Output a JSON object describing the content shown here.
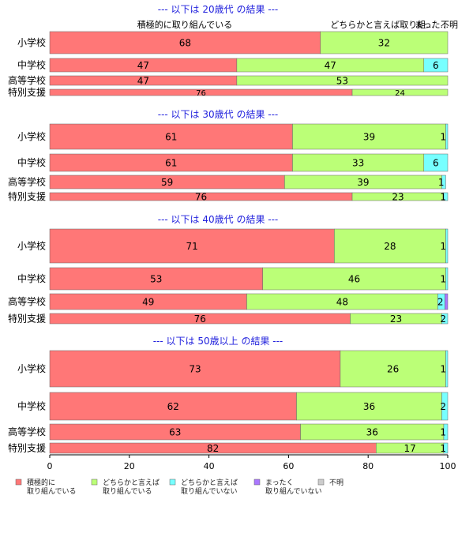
{
  "chart_data": {
    "type": "bar",
    "orientation": "horizontal",
    "stacked": true,
    "xlim": [
      0,
      100
    ],
    "x_ticks": [
      "0",
      "20",
      "40",
      "60",
      "80",
      "100"
    ],
    "category_labels_top": [
      "積極的に取り組んでいる",
      "どちらかと言えば取り組...",
      "まった...",
      "不明"
    ],
    "series_names": [
      "積極的に\n取り組んでいる",
      "どちらかと言えば\n取り組んでいる",
      "どちらかと言えば\n取り組んでいない",
      "まったく\n取り組んでいない",
      "不明"
    ],
    "series_colors": [
      "#ff7777",
      "#bbff77",
      "#77ffff",
      "#aa77ff",
      "#cccccc"
    ],
    "groups": [
      {
        "title": "--- 以下は 20歳代 の結果 ---",
        "rows": [
          {
            "label": "小学校",
            "values": [
              68,
              32,
              0,
              0,
              0
            ],
            "labels": [
              "68",
              "32",
              "",
              "",
              ""
            ]
          },
          {
            "label": "中学校",
            "values": [
              47,
              47,
              6,
              0,
              0
            ],
            "labels": [
              "47",
              "47",
              "6",
              "",
              ""
            ]
          },
          {
            "label": "高等学校",
            "values": [
              47,
              53,
              0,
              0,
              0
            ],
            "labels": [
              "47",
              "53",
              "",
              "",
              ""
            ]
          },
          {
            "label": "特別支援",
            "values": [
              76,
              24,
              0,
              0,
              0
            ],
            "labels": [
              "76",
              "24",
              "",
              "",
              ""
            ]
          }
        ]
      },
      {
        "title": "--- 以下は 30歳代 の結果 ---",
        "rows": [
          {
            "label": "小学校",
            "values": [
              61,
              38.5,
              0.5,
              0,
              0
            ],
            "labels": [
              "61",
              "39",
              "1",
              "",
              ""
            ]
          },
          {
            "label": "中学校",
            "values": [
              61,
              33,
              6,
              0,
              0
            ],
            "labels": [
              "61",
              "33",
              "6",
              "",
              ""
            ]
          },
          {
            "label": "高等学校",
            "values": [
              59,
              39.5,
              1,
              0,
              0
            ],
            "labels": [
              "59",
              "39",
              "1",
              "",
              ""
            ]
          },
          {
            "label": "特別支援",
            "values": [
              76,
              23,
              1,
              0,
              0
            ],
            "labels": [
              "76",
              "23",
              "1",
              "",
              ""
            ]
          }
        ]
      },
      {
        "title": "--- 以下は 40歳代 の結果 ---",
        "rows": [
          {
            "label": "小学校",
            "values": [
              71.5,
              28,
              0.5,
              0,
              0
            ],
            "labels": [
              "71",
              "28",
              "1",
              "",
              ""
            ]
          },
          {
            "label": "中学校",
            "values": [
              53.5,
              46,
              0.5,
              0,
              0
            ],
            "labels": [
              "53",
              "46",
              "1",
              "",
              ""
            ]
          },
          {
            "label": "高等学校",
            "values": [
              49.5,
              48,
              1.8,
              0.7,
              0
            ],
            "labels": [
              "49",
              "48",
              "2",
              "",
              ""
            ]
          },
          {
            "label": "特別支援",
            "values": [
              75.5,
              23,
              1.5,
              0,
              0
            ],
            "labels": [
              "76",
              "23",
              "2",
              "",
              ""
            ]
          }
        ]
      },
      {
        "title": "--- 以下は 50歳以上 の結果 ---",
        "rows": [
          {
            "label": "小学校",
            "values": [
              73,
              26.5,
              0.5,
              0,
              0
            ],
            "labels": [
              "73",
              "26",
              "1",
              "",
              ""
            ]
          },
          {
            "label": "中学校",
            "values": [
              62,
              36.5,
              1.5,
              0,
              0
            ],
            "labels": [
              "62",
              "36",
              "2",
              "",
              ""
            ]
          },
          {
            "label": "高等学校",
            "values": [
              63,
              36,
              1,
              0,
              0
            ],
            "labels": [
              "63",
              "36",
              "1",
              "",
              ""
            ]
          },
          {
            "label": "特別支援",
            "values": [
              82,
              17,
              1,
              0,
              0
            ],
            "labels": [
              "82",
              "17",
              "1",
              "",
              ""
            ]
          }
        ]
      }
    ]
  }
}
